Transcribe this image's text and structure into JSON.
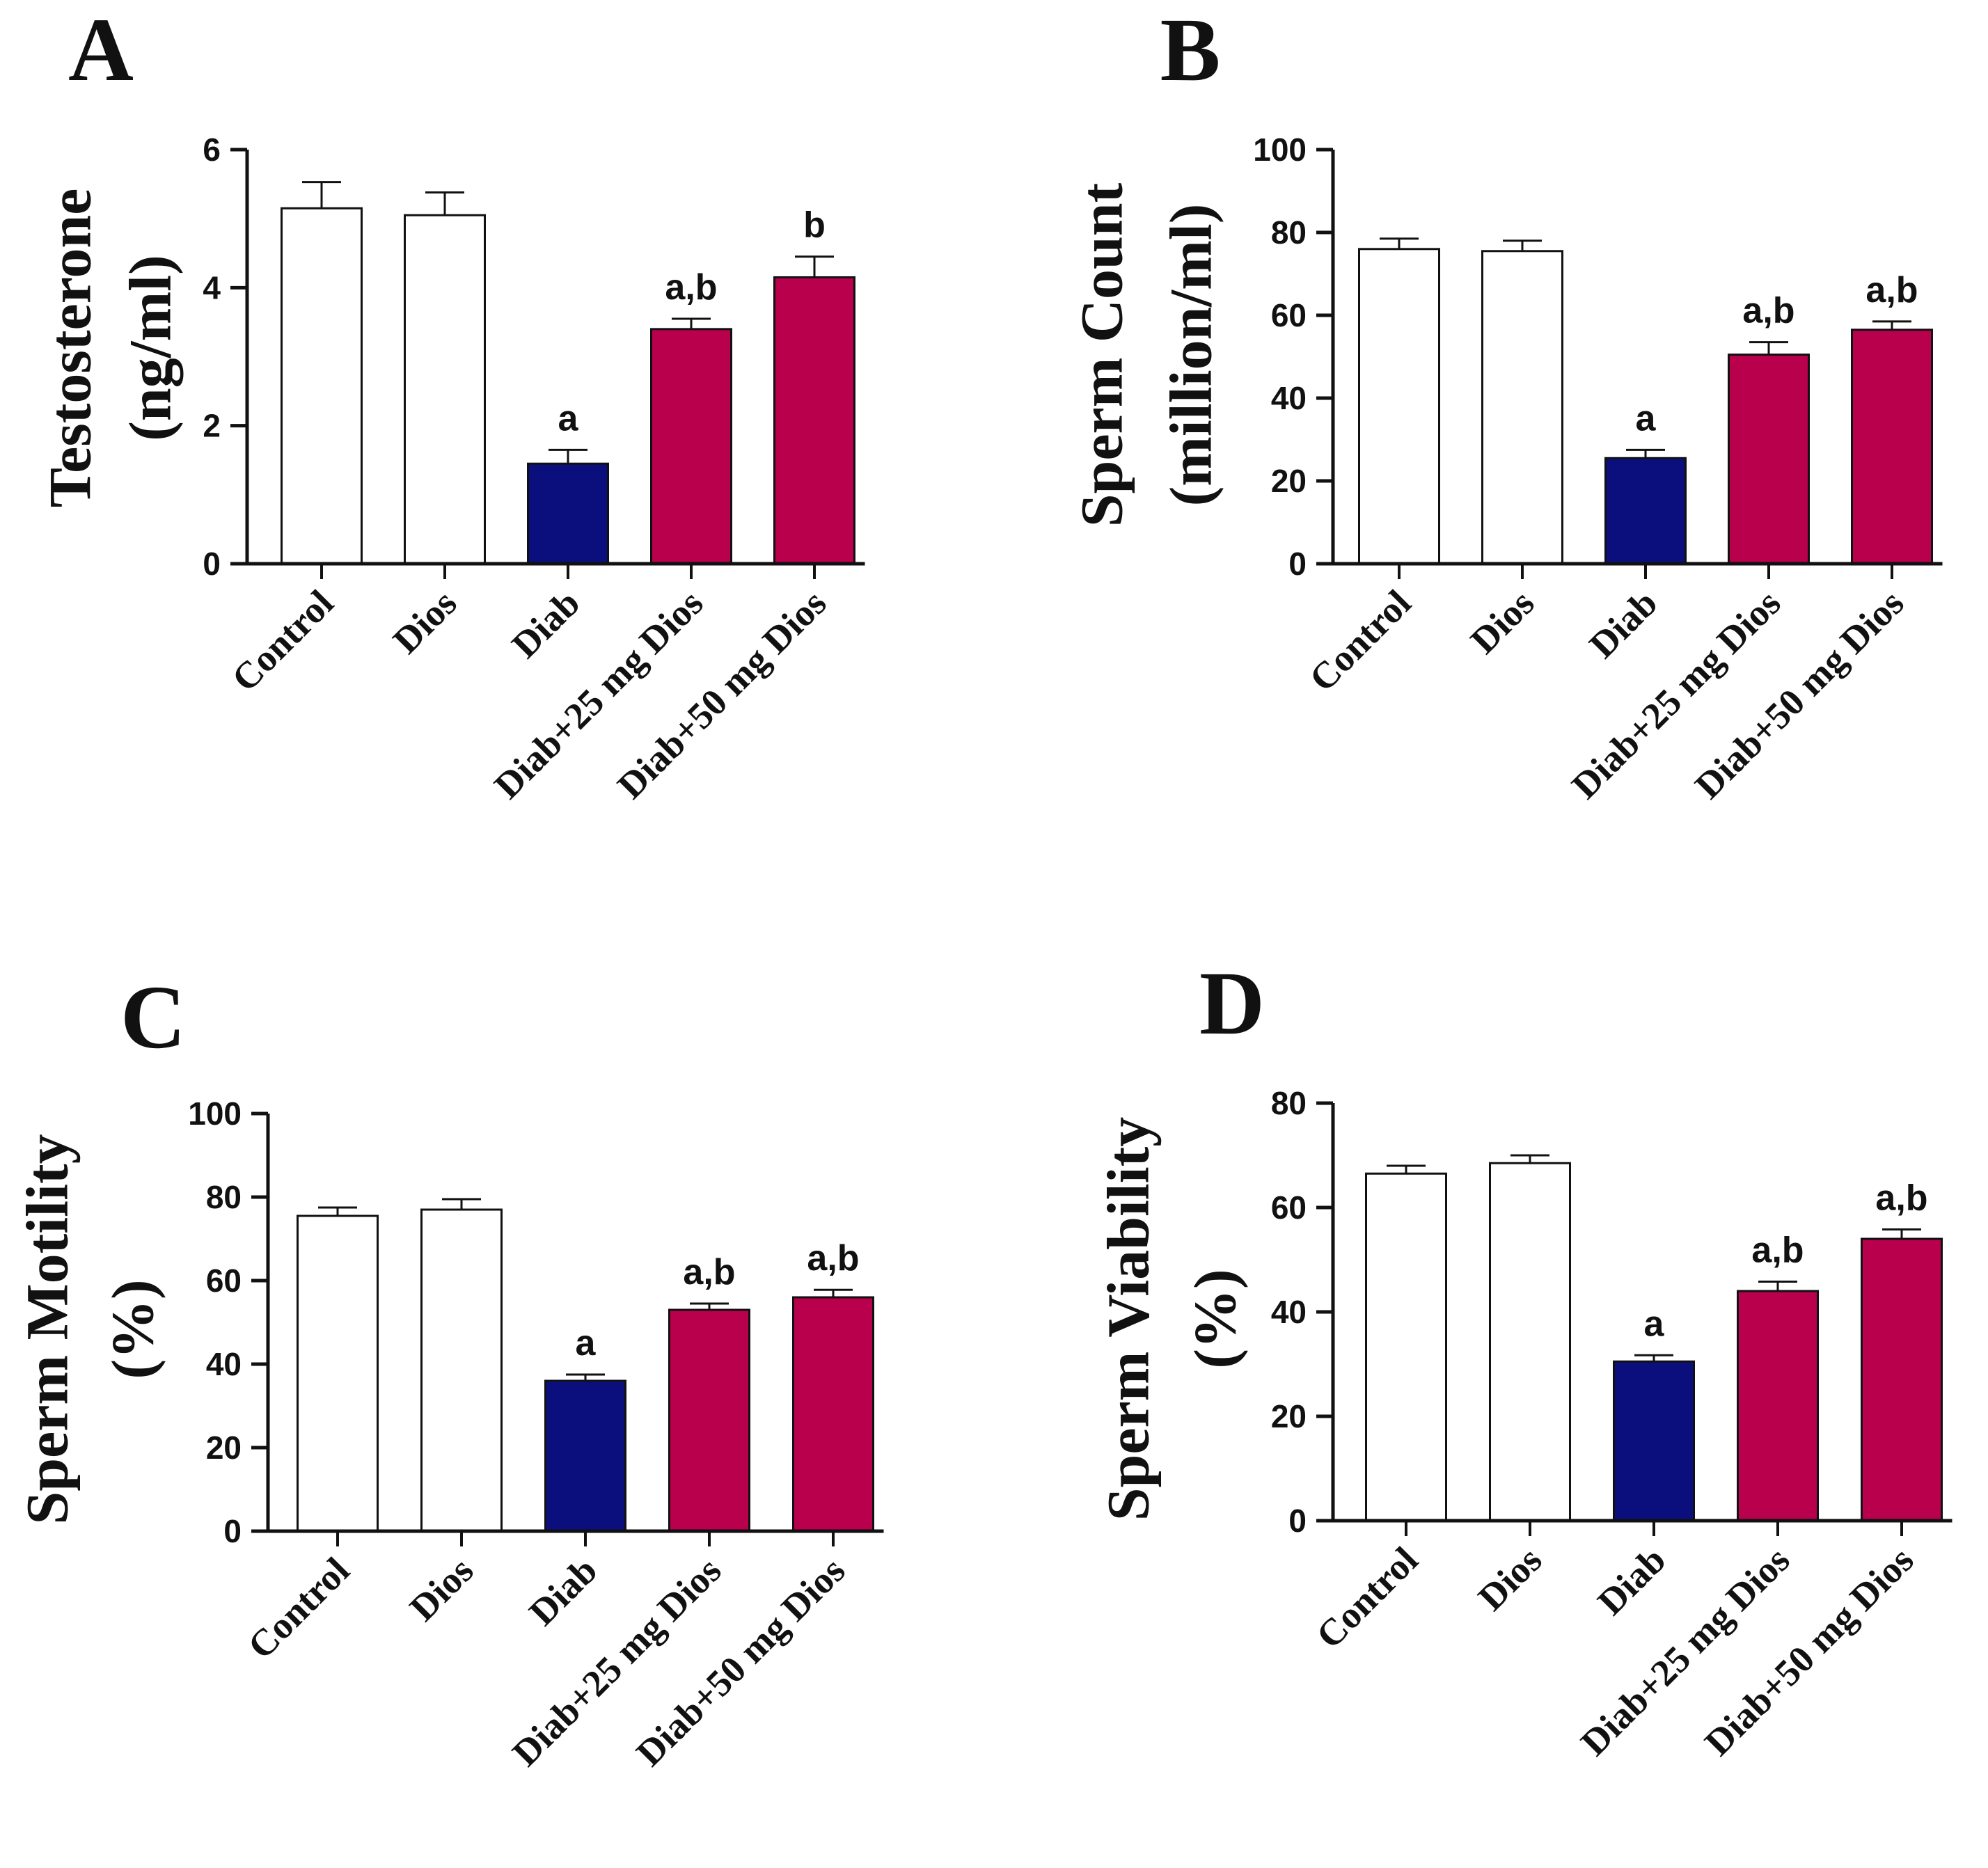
{
  "colors": {
    "control": "#ffffff",
    "diab": "#0b0f7e",
    "treated": "#b8004c",
    "axis": "#111111"
  },
  "chart_data": [
    {
      "type": "bar",
      "panel": "A",
      "ylabel_lines": [
        "Testosterone",
        "(ng/ml)"
      ],
      "categories": [
        "Control",
        "Dios",
        "Diab",
        "Diab+25 mg Dios",
        "Diab+50 mg Dios"
      ],
      "values": [
        5.15,
        5.05,
        1.45,
        3.4,
        4.15
      ],
      "errors": [
        0.38,
        0.33,
        0.2,
        0.15,
        0.3
      ],
      "significance": [
        "",
        "",
        "a",
        "a,b",
        "b"
      ],
      "bar_colors": [
        "control",
        "control",
        "diab",
        "treated",
        "treated"
      ],
      "ylim": [
        0,
        6
      ],
      "yticks": [
        0,
        2,
        4,
        6
      ]
    },
    {
      "type": "bar",
      "panel": "B",
      "ylabel_lines": [
        "Sperm Count",
        "(million/ml)"
      ],
      "categories": [
        "Control",
        "Dios",
        "Diab",
        "Diab+25 mg Dios",
        "Diab+50 mg Dios"
      ],
      "values": [
        76,
        75.5,
        25.5,
        50.5,
        56.5
      ],
      "errors": [
        2.5,
        2.5,
        2.0,
        3.0,
        2.0
      ],
      "significance": [
        "",
        "",
        "a",
        "a,b",
        "a,b"
      ],
      "bar_colors": [
        "control",
        "control",
        "diab",
        "treated",
        "treated"
      ],
      "ylim": [
        0,
        100
      ],
      "yticks": [
        0,
        20,
        40,
        60,
        80,
        100
      ]
    },
    {
      "type": "bar",
      "panel": "C",
      "ylabel_lines": [
        "Sperm Motility",
        "(%)"
      ],
      "categories": [
        "Control",
        "Dios",
        "Diab",
        "Diab+25 mg Dios",
        "Diab+50 mg Dios"
      ],
      "values": [
        75.5,
        77,
        36,
        53,
        56
      ],
      "errors": [
        2.0,
        2.5,
        1.5,
        1.5,
        1.8
      ],
      "significance": [
        "",
        "",
        "a",
        "a,b",
        "a,b"
      ],
      "bar_colors": [
        "control",
        "control",
        "diab",
        "treated",
        "treated"
      ],
      "ylim": [
        0,
        100
      ],
      "yticks": [
        0,
        20,
        40,
        60,
        80,
        100
      ]
    },
    {
      "type": "bar",
      "panel": "D",
      "ylabel_lines": [
        "Sperm Viability",
        "(%)"
      ],
      "categories": [
        "Control",
        "Dios",
        "Diab",
        "Diab+25 mg Dios",
        "Diab+50 mg Dios"
      ],
      "values": [
        66.5,
        68.5,
        30.5,
        44,
        54
      ],
      "errors": [
        1.5,
        1.5,
        1.2,
        1.8,
        1.8
      ],
      "significance": [
        "",
        "",
        "a",
        "a,b",
        "a,b"
      ],
      "bar_colors": [
        "control",
        "control",
        "diab",
        "treated",
        "treated"
      ],
      "ylim": [
        0,
        80
      ],
      "yticks": [
        0,
        20,
        40,
        60,
        80
      ]
    }
  ]
}
